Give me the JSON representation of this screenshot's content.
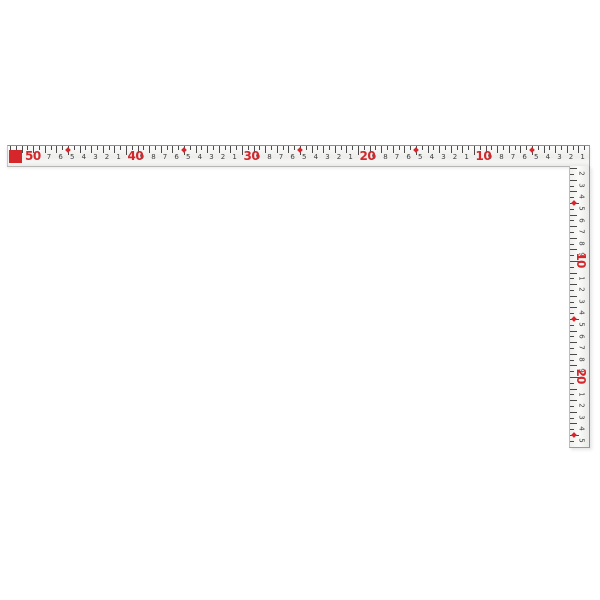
{
  "scene": {
    "background_color": "#ffffff",
    "object_name": "L-shaped steel carpenter square (framing square) with centimeter scale"
  },
  "colors": {
    "steel_face": "#f0f0ef",
    "edge_dark": "#8e8e8e",
    "edge_light": "#c2c2c2",
    "tick": "#4a4a4a",
    "digit": "#3d3d3d",
    "accent_red": "#d4262b"
  },
  "horizontal_scale": {
    "unit": "cm",
    "range": [
      0,
      50
    ],
    "reading_direction": "values decrease from 50 at left end to 1 at the corner on the right",
    "tens_labels": [
      {
        "value": 50,
        "label": "50"
      },
      {
        "value": 40,
        "label": "40"
      },
      {
        "value": 30,
        "label": "30"
      },
      {
        "value": 20,
        "label": "20"
      },
      {
        "value": 10,
        "label": "10"
      }
    ],
    "unit_digit_values": [
      47,
      46,
      45,
      44,
      43,
      42,
      41,
      39,
      38,
      37,
      36,
      35,
      34,
      33,
      32,
      31,
      29,
      28,
      27,
      26,
      25,
      24,
      23,
      22,
      21,
      19,
      18,
      17,
      16,
      15,
      14,
      13,
      12,
      11,
      9,
      8,
      7,
      6,
      5,
      4,
      3,
      2,
      1
    ],
    "five_mark_values": [
      45,
      35,
      25,
      15,
      5
    ],
    "end_marker": {
      "type": "red-square"
    }
  },
  "vertical_scale": {
    "unit": "cm",
    "range": [
      0,
      26
    ],
    "reading_direction": "values increase downward from the corner; digits rotated 90 degrees",
    "tens_labels": [
      {
        "value": 10,
        "label": "10"
      },
      {
        "value": 20,
        "label": "20"
      }
    ],
    "unit_digit_values": [
      2,
      3,
      4,
      5,
      6,
      7,
      8,
      9,
      11,
      12,
      13,
      14,
      15,
      16,
      17,
      18,
      19,
      21,
      22,
      23,
      24,
      25
    ],
    "five_mark_values": [
      5,
      15,
      25
    ]
  }
}
